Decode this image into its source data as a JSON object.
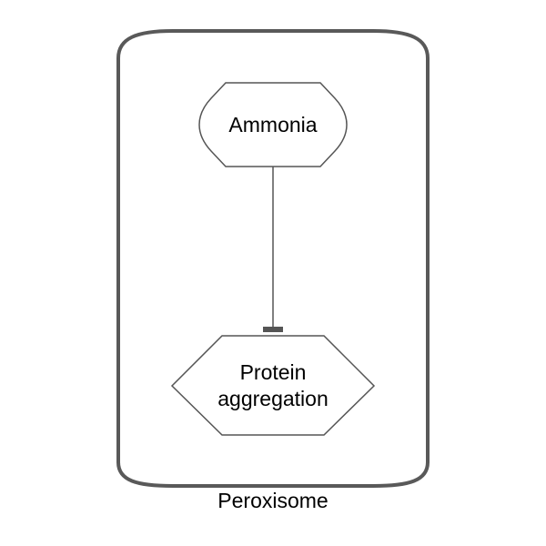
{
  "diagram": {
    "compartment": {
      "label": "Peroxisome",
      "border_color": "#595959"
    },
    "nodes": {
      "ammonia": {
        "label": "Ammonia",
        "shape": "rounded-octagon",
        "border_color": "#555555"
      },
      "protein_aggregation": {
        "label_line1": "Protein",
        "label_line2": "aggregation",
        "shape": "hexagon",
        "border_color": "#555555"
      }
    },
    "edges": [
      {
        "from": "Ammonia",
        "to": "Protein aggregation",
        "type": "inhibition",
        "color": "#555555"
      }
    ]
  }
}
